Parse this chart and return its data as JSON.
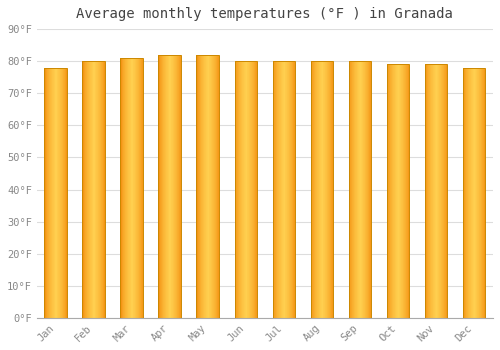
{
  "months": [
    "Jan",
    "Feb",
    "Mar",
    "Apr",
    "May",
    "Jun",
    "Jul",
    "Aug",
    "Sep",
    "Oct",
    "Nov",
    "Dec"
  ],
  "values": [
    78,
    80,
    81,
    82,
    82,
    80,
    80,
    80,
    80,
    79,
    79,
    78
  ],
  "bar_color_center": "#FFD050",
  "bar_color_edge": "#F08000",
  "bar_outline_color": "#CC8800",
  "background_color": "#FFFFFF",
  "grid_color": "#DDDDDD",
  "title": "Average monthly temperatures (°F ) in Granada",
  "title_fontsize": 10,
  "ylim": [
    0,
    90
  ],
  "yticks": [
    0,
    10,
    20,
    30,
    40,
    50,
    60,
    70,
    80,
    90
  ],
  "tick_label_color": "#888888",
  "bar_width": 0.6,
  "n_gradient": 60
}
